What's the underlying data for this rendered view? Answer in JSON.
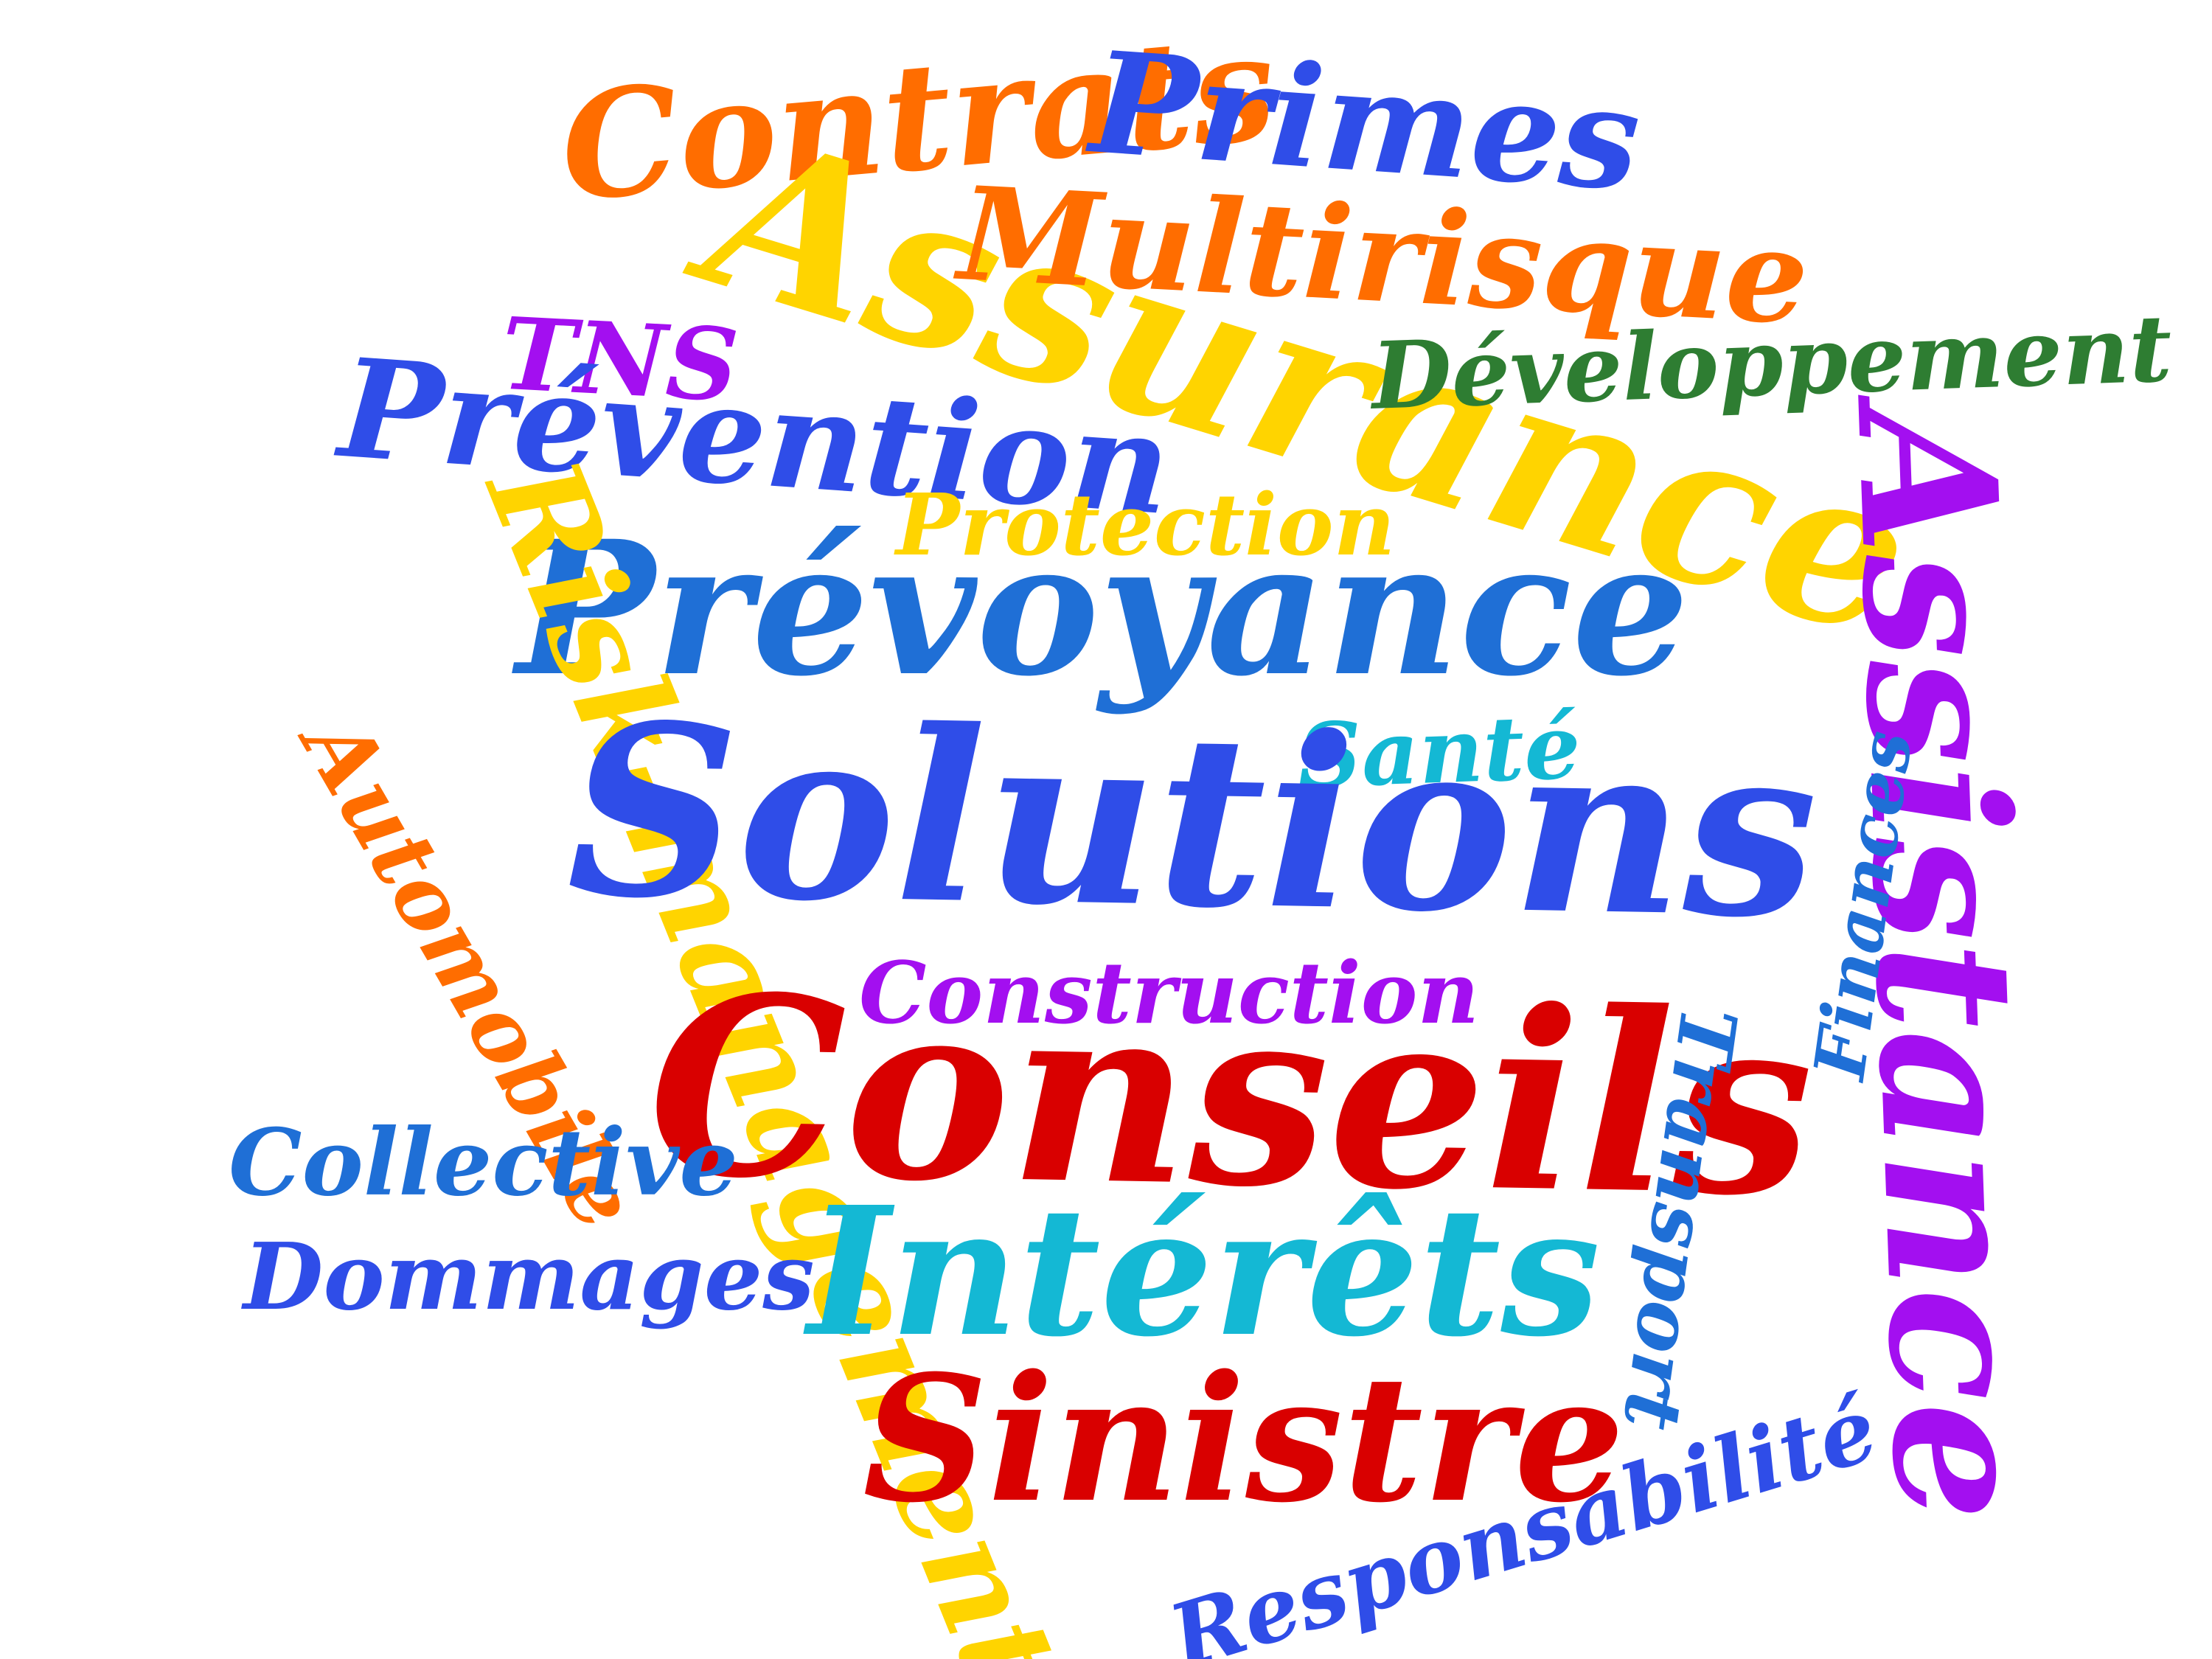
{
  "words": [
    {
      "text": "Contrats",
      "color": "#ff6d00"
    },
    {
      "text": "Primes",
      "color": "#2f4de8"
    },
    {
      "text": "Assurance",
      "color": "#ffd400"
    },
    {
      "text": "Multirisque",
      "color": "#ff6d00"
    },
    {
      "text": "TNS",
      "color": "#a30ff0"
    },
    {
      "text": "Développement",
      "color": "#2e7d32"
    },
    {
      "text": "Prévention",
      "color": "#2f4de8"
    },
    {
      "text": "Protection",
      "color": "#ffd400"
    },
    {
      "text": "Prévoyance",
      "color": "#1f6fd6"
    },
    {
      "text": "Assistance",
      "color": "#a30ff0"
    },
    {
      "text": "Risk-management",
      "color": "#ffd400"
    },
    {
      "text": "Santé",
      "color": "#14b8d4"
    },
    {
      "text": "Solutions",
      "color": "#2f4de8"
    },
    {
      "text": "Finances",
      "color": "#1f6fd6"
    },
    {
      "text": "Automobile",
      "color": "#ff6d00"
    },
    {
      "text": "Construction",
      "color": "#a30ff0"
    },
    {
      "text": "Conseils",
      "color": "#d90000"
    },
    {
      "text": "Transport",
      "color": "#1f6fd6"
    },
    {
      "text": "Collective",
      "color": "#1f6fd6"
    },
    {
      "text": "Intérêts",
      "color": "#14b8d4"
    },
    {
      "text": "Dommages",
      "color": "#2f4de8"
    },
    {
      "text": "Sinistre",
      "color": "#d90000"
    },
    {
      "text": "Responsabilité",
      "color": "#2f4de8"
    }
  ]
}
